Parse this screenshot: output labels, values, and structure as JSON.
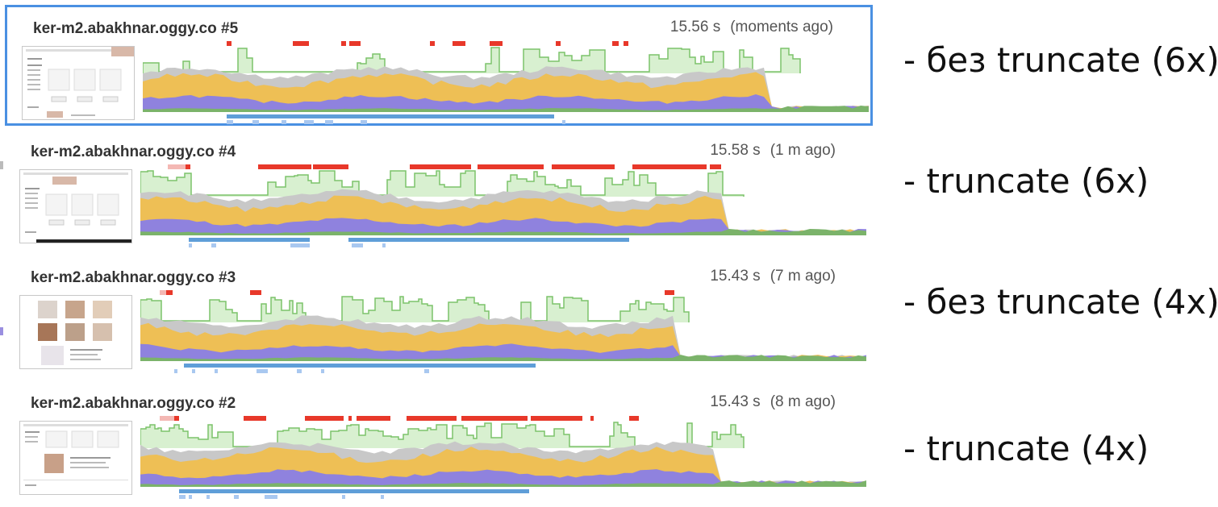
{
  "colors": {
    "selected_border": "#4a90e2",
    "cpu_line": "#7cc36a",
    "cpu_fill": "#d8f0d0",
    "long_task": "#e8382a",
    "long_task_light": "#f4b8b4",
    "layer_grey": "#c8c8c8",
    "layer_yellow": "#eebf55",
    "layer_purple": "#8f82de",
    "layer_green": "#7bb36a",
    "network_bar": "#5f9ed8",
    "network_light": "#a9c8f0"
  },
  "profiles": [
    {
      "title": "ker-m2.abakhnar.oggy.co #5",
      "duration": "15.56 s",
      "ago": "(moments ago)",
      "note": "- без truncate (6x)",
      "selected": true,
      "thumbnail": "page-screenshot-text"
    },
    {
      "title": "ker-m2.abakhnar.oggy.co #4",
      "duration": "15.58 s",
      "ago": "(1 m ago)",
      "note": "- truncate (6x)",
      "selected": false,
      "thumbnail": "page-screenshot-text"
    },
    {
      "title": "ker-m2.abakhnar.oggy.co #3",
      "duration": "15.43 s",
      "ago": "(7 m ago)",
      "note": "- без truncate (4x)",
      "selected": false,
      "thumbnail": "page-screenshot-images"
    },
    {
      "title": "ker-m2.abakhnar.oggy.co #2",
      "duration": "15.43 s",
      "ago": "(8 m ago)",
      "note": "- truncate (4x)",
      "selected": false,
      "thumbnail": "page-screenshot-text-image"
    }
  ]
}
